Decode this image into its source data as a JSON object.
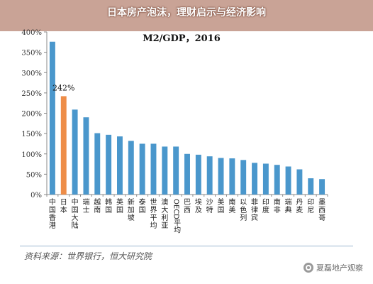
{
  "banner": {
    "title": "日本房产泡沫，理财启示与经济影响"
  },
  "source_note": "资料来源：世界银行，恒大研究院",
  "watermark": {
    "text": "夏磊地产观察",
    "icon": "wechat-icon"
  },
  "chart_data": {
    "type": "bar",
    "title": "M2/GDP，2016",
    "categories": [
      "中国香港",
      "日本",
      "中国大陆",
      "瑞士",
      "越南",
      "韩国",
      "英国",
      "新加坡",
      "泰国",
      "世界平均",
      "澳大利亚",
      "OECD平均",
      "巴西",
      "埃及",
      "沙特",
      "美国",
      "南美",
      "以色列",
      "菲律宾",
      "印度",
      "南非",
      "瑞典",
      "丹麦",
      "印尼",
      "墨西哥"
    ],
    "values": [
      376,
      242,
      209,
      190,
      151,
      147,
      143,
      132,
      125,
      125,
      118,
      118,
      100,
      98,
      94,
      90,
      89,
      85,
      78,
      76,
      73,
      69,
      62,
      40,
      38
    ],
    "highlight_index": 1,
    "annotation": "242%",
    "yticks": [
      "0%",
      "50%",
      "100%",
      "150%",
      "200%",
      "250%",
      "300%",
      "350%",
      "400%"
    ],
    "ylim": [
      0,
      400
    ],
    "grid": false,
    "legend": "none",
    "colors": {
      "bar": "#4a97cc",
      "highlight": "#ee8d48",
      "axis": "#888888"
    }
  }
}
